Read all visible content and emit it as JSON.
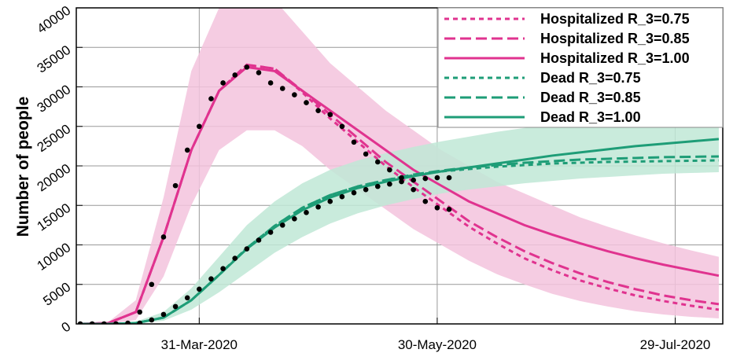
{
  "chart_data": {
    "type": "line",
    "y_label": "Number of people",
    "xlim": [
      "2020-02-29",
      "2020-08-10"
    ],
    "xticks": [
      {
        "value": "2020-03-31",
        "label": "31-Mar-2020"
      },
      {
        "value": "2020-05-30",
        "label": "30-May-2020"
      },
      {
        "value": "2020-07-29",
        "label": "29-Jul-2020"
      }
    ],
    "ylim": [
      0,
      40000
    ],
    "yticks": [
      0,
      5000,
      10000,
      15000,
      20000,
      25000,
      30000,
      35000,
      40000
    ],
    "grid": true,
    "legend": "upper right",
    "x": [
      "2020-03-01",
      "2020-03-08",
      "2020-03-15",
      "2020-03-22",
      "2020-03-29",
      "2020-04-05",
      "2020-04-12",
      "2020-04-19",
      "2020-04-26",
      "2020-05-03",
      "2020-05-10",
      "2020-05-17",
      "2020-05-24",
      "2020-05-31",
      "2020-06-07",
      "2020-06-14",
      "2020-06-21",
      "2020-06-28",
      "2020-07-05",
      "2020-07-12",
      "2020-07-19",
      "2020-07-26",
      "2020-08-02",
      "2020-08-09"
    ],
    "bands": [
      {
        "color": "#f3c3dd",
        "upper": [
          0,
          200,
          3000,
          16000,
          32000,
          40000,
          42000,
          41000,
          37000,
          33000,
          30000,
          27000,
          24500,
          22000,
          20000,
          18000,
          16500,
          15000,
          13500,
          12300,
          11200,
          10200,
          9300,
          8500
        ],
        "lower": [
          0,
          0,
          500,
          6000,
          15000,
          22000,
          24500,
          24500,
          22500,
          19500,
          17000,
          14500,
          12000,
          10000,
          8000,
          6300,
          5000,
          3800,
          2900,
          2200,
          1600,
          1200,
          900,
          700
        ]
      },
      {
        "color": "#bfe8d6",
        "upper": [
          0,
          0,
          300,
          1500,
          4500,
          8500,
          12500,
          15500,
          17800,
          19500,
          20700,
          21600,
          22400,
          23100,
          23700,
          24300,
          24800,
          25300,
          25700,
          26100,
          26500,
          26800,
          27100,
          27400
        ],
        "lower": [
          0,
          0,
          50,
          400,
          1800,
          4000,
          6500,
          9000,
          11000,
          12700,
          14000,
          15000,
          15800,
          16500,
          17000,
          17400,
          17800,
          18100,
          18400,
          18600,
          18800,
          19000,
          19100,
          19200
        ]
      }
    ],
    "series": [
      {
        "name": "Hospitalized R_3=0.75",
        "color": "#e0338f",
        "linestyle": "dotted",
        "values": [
          0,
          100,
          1500,
          11000,
          22000,
          29500,
          32800,
          32300,
          29300,
          26000,
          23000,
          20000,
          17300,
          14800,
          12300,
          10200,
          8300,
          6800,
          5500,
          4500,
          3600,
          2900,
          2300,
          1800
        ]
      },
      {
        "name": "Hospitalized R_3=0.85",
        "color": "#e0338f",
        "linestyle": "dashed",
        "values": [
          0,
          100,
          1500,
          11000,
          22000,
          29500,
          32800,
          32300,
          29500,
          26500,
          23500,
          20500,
          18000,
          15500,
          13000,
          11000,
          9200,
          7700,
          6400,
          5300,
          4400,
          3600,
          3000,
          2500
        ]
      },
      {
        "name": "Hospitalized R_3=1.00",
        "color": "#e0338f",
        "linestyle": "solid",
        "values": [
          0,
          100,
          1500,
          11000,
          22000,
          29500,
          32500,
          32000,
          29500,
          27000,
          24500,
          22000,
          19500,
          17500,
          15500,
          14000,
          12500,
          11300,
          10200,
          9200,
          8300,
          7500,
          6800,
          6100
        ]
      },
      {
        "name": "Dead R_3=0.75",
        "color": "#1e9d77",
        "linestyle": "dotted",
        "values": [
          0,
          0,
          100,
          800,
          3000,
          6200,
          9600,
          12400,
          14700,
          16300,
          17400,
          18200,
          18800,
          19300,
          19600,
          19900,
          20100,
          20300,
          20400,
          20500,
          20550,
          20600,
          20650,
          20700
        ]
      },
      {
        "name": "Dead R_3=0.85",
        "color": "#1e9d77",
        "linestyle": "dashed",
        "values": [
          0,
          0,
          100,
          800,
          3000,
          6200,
          9600,
          12400,
          14700,
          16300,
          17400,
          18200,
          18900,
          19400,
          19800,
          20100,
          20400,
          20600,
          20800,
          20900,
          21000,
          21100,
          21150,
          21200
        ]
      },
      {
        "name": "Dead R_3=1.00",
        "color": "#1e9d77",
        "linestyle": "solid",
        "values": [
          0,
          0,
          100,
          800,
          3000,
          6200,
          9500,
          12200,
          14400,
          16000,
          17200,
          18000,
          18700,
          19300,
          19800,
          20300,
          20800,
          21300,
          21700,
          22100,
          22500,
          22800,
          23100,
          23400
        ]
      }
    ],
    "observed_color": "#000000",
    "observed_x": [
      "2020-03-01",
      "2020-03-04",
      "2020-03-07",
      "2020-03-10",
      "2020-03-13",
      "2020-03-16",
      "2020-03-19",
      "2020-03-22",
      "2020-03-25",
      "2020-03-28",
      "2020-03-31",
      "2020-04-03",
      "2020-04-06",
      "2020-04-09",
      "2020-04-12",
      "2020-04-15",
      "2020-04-18",
      "2020-04-21",
      "2020-04-24",
      "2020-04-27",
      "2020-04-30",
      "2020-05-03",
      "2020-05-06",
      "2020-05-09",
      "2020-05-12",
      "2020-05-15",
      "2020-05-18",
      "2020-05-21",
      "2020-05-24",
      "2020-05-27",
      "2020-05-30",
      "2020-06-02"
    ],
    "observed_hospitalized": [
      0,
      0,
      0,
      0,
      100,
      1500,
      5000,
      11000,
      17500,
      22000,
      25000,
      28500,
      30500,
      31500,
      32500,
      31800,
      30500,
      29800,
      29000,
      28000,
      27000,
      26500,
      25000,
      23000,
      21500,
      20500,
      19500,
      18500,
      17000,
      15500,
      14700,
      14500
    ],
    "observed_dead": [
      0,
      0,
      0,
      0,
      0,
      100,
      500,
      1200,
      2200,
      3300,
      4400,
      5700,
      7000,
      8300,
      9500,
      10600,
      11600,
      12500,
      13300,
      14100,
      14800,
      15500,
      16100,
      16600,
      17000,
      17400,
      17700,
      18000,
      18200,
      18400,
      18500,
      18500
    ]
  }
}
